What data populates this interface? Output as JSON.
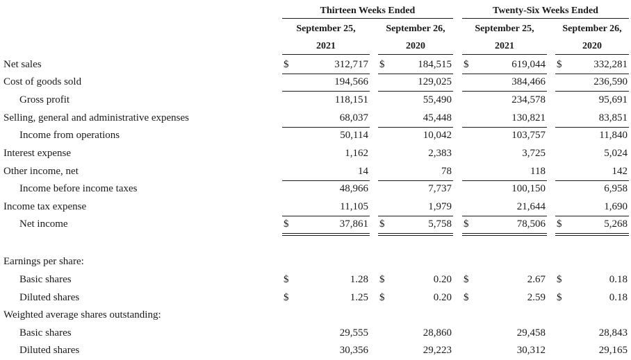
{
  "header": {
    "groups": [
      "Thirteen Weeks Ended",
      "Twenty-Six Weeks Ended"
    ],
    "columns": [
      {
        "line1": "September 25,",
        "line2": "2021"
      },
      {
        "line1": "September 26,",
        "line2": "2020"
      },
      {
        "line1": "September 25,",
        "line2": "2021"
      },
      {
        "line1": "September 26,",
        "line2": "2020"
      }
    ]
  },
  "rows": [
    {
      "label": "Net sales",
      "indent": false,
      "dollar": true,
      "values": [
        "312,717",
        "184,515",
        "619,044",
        "332,281"
      ],
      "rule_below": "single"
    },
    {
      "label": "Cost of goods sold",
      "indent": false,
      "dollar": false,
      "values": [
        "194,566",
        "129,025",
        "384,466",
        "236,590"
      ],
      "rule_below": "single"
    },
    {
      "label": "Gross profit",
      "indent": true,
      "dollar": false,
      "values": [
        "118,151",
        "55,490",
        "234,578",
        "95,691"
      ],
      "rule_below": "none"
    },
    {
      "label": "Selling, general and administrative expenses",
      "indent": false,
      "dollar": false,
      "values": [
        "68,037",
        "45,448",
        "130,821",
        "83,851"
      ],
      "rule_below": "single"
    },
    {
      "label": "Income from operations",
      "indent": true,
      "dollar": false,
      "values": [
        "50,114",
        "10,042",
        "103,757",
        "11,840"
      ],
      "rule_below": "none"
    },
    {
      "label": "Interest expense",
      "indent": false,
      "dollar": false,
      "values": [
        "1,162",
        "2,383",
        "3,725",
        "5,024"
      ],
      "rule_below": "none"
    },
    {
      "label": "Other income, net",
      "indent": false,
      "dollar": false,
      "values": [
        "14",
        "78",
        "118",
        "142"
      ],
      "rule_below": "single"
    },
    {
      "label": "Income before income taxes",
      "indent": true,
      "dollar": false,
      "values": [
        "48,966",
        "7,737",
        "100,150",
        "6,958"
      ],
      "rule_below": "none"
    },
    {
      "label": "Income tax expense",
      "indent": false,
      "dollar": false,
      "values": [
        "11,105",
        "1,979",
        "21,644",
        "1,690"
      ],
      "rule_below": "single"
    },
    {
      "label": "Net income",
      "indent": true,
      "dollar": true,
      "values": [
        "37,861",
        "5,758",
        "78,506",
        "5,268"
      ],
      "rule_below": "double"
    },
    {
      "label": "",
      "indent": false,
      "dollar": false,
      "values": [
        "",
        "",
        "",
        ""
      ],
      "rule_below": "none"
    },
    {
      "label": "Earnings per share:",
      "indent": false,
      "dollar": false,
      "values": [
        "",
        "",
        "",
        ""
      ],
      "rule_below": "none"
    },
    {
      "label": "Basic shares",
      "indent": true,
      "dollar": true,
      "values": [
        "1.28",
        "0.20",
        "2.67",
        "0.18"
      ],
      "rule_below": "none"
    },
    {
      "label": "Diluted shares",
      "indent": true,
      "dollar": true,
      "values": [
        "1.25",
        "0.20",
        "2.59",
        "0.18"
      ],
      "rule_below": "none"
    },
    {
      "label": "Weighted average shares outstanding:",
      "indent": false,
      "dollar": false,
      "values": [
        "",
        "",
        "",
        ""
      ],
      "rule_below": "none"
    },
    {
      "label": "Basic shares",
      "indent": true,
      "dollar": false,
      "values": [
        "29,555",
        "28,860",
        "29,458",
        "28,843"
      ],
      "rule_below": "none"
    },
    {
      "label": "Diluted shares",
      "indent": true,
      "dollar": false,
      "values": [
        "30,356",
        "29,223",
        "30,312",
        "29,165"
      ],
      "rule_below": "none"
    }
  ],
  "currency_symbol": "$"
}
